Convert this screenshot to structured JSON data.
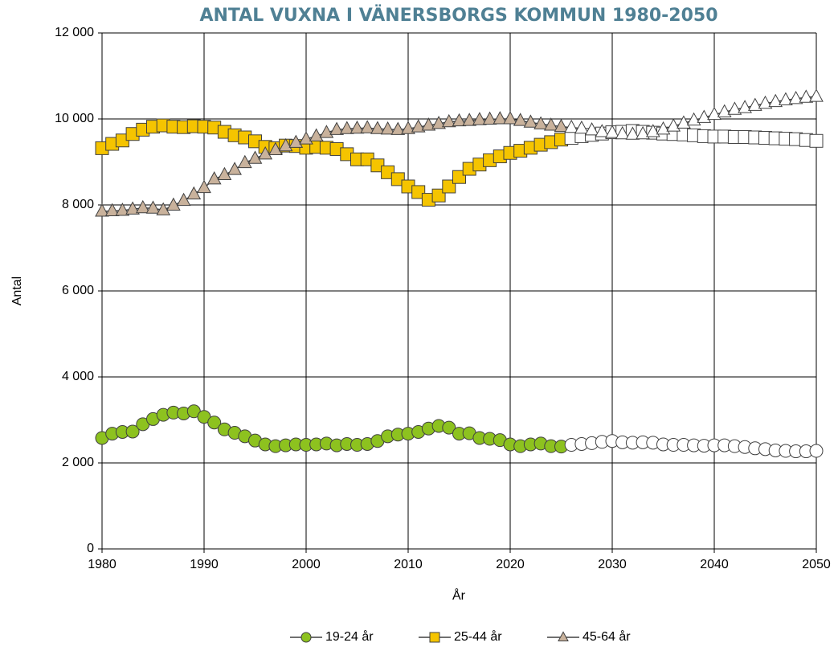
{
  "chart_data": {
    "type": "line",
    "title": "ANTAL VUXNA I VÄNERSBORGS KOMMUN 1980-2050",
    "y_label": "Antal",
    "x_label": "År",
    "x": [
      1980,
      1981,
      1982,
      1983,
      1984,
      1985,
      1986,
      1987,
      1988,
      1989,
      1990,
      1991,
      1992,
      1993,
      1994,
      1995,
      1996,
      1997,
      1998,
      1999,
      2000,
      2001,
      2002,
      2003,
      2004,
      2005,
      2006,
      2007,
      2008,
      2009,
      2010,
      2011,
      2012,
      2013,
      2014,
      2015,
      2016,
      2017,
      2018,
      2019,
      2020,
      2021,
      2022,
      2023,
      2024,
      2025,
      2026,
      2027,
      2028,
      2029,
      2030,
      2031,
      2032,
      2033,
      2034,
      2035,
      2036,
      2037,
      2038,
      2039,
      2040,
      2041,
      2042,
      2043,
      2044,
      2045,
      2046,
      2047,
      2048,
      2049,
      2050
    ],
    "open_markers_from": 2026,
    "line_color": "#404040",
    "series": [
      {
        "name": "19-24 år",
        "color": "#8dc21f",
        "marker": "circle",
        "values": [
          2580,
          2680,
          2720,
          2730,
          2900,
          3020,
          3120,
          3170,
          3150,
          3200,
          3070,
          2940,
          2780,
          2700,
          2620,
          2520,
          2430,
          2390,
          2410,
          2430,
          2420,
          2430,
          2450,
          2410,
          2440,
          2420,
          2440,
          2510,
          2620,
          2660,
          2680,
          2720,
          2800,
          2860,
          2820,
          2680,
          2690,
          2580,
          2560,
          2530,
          2430,
          2390,
          2430,
          2450,
          2390,
          2380,
          2420,
          2440,
          2460,
          2490,
          2510,
          2480,
          2470,
          2480,
          2470,
          2430,
          2420,
          2420,
          2410,
          2400,
          2410,
          2410,
          2390,
          2370,
          2340,
          2320,
          2290,
          2280,
          2270,
          2270,
          2280
        ]
      },
      {
        "name": "25-44 år",
        "color": "#f5c400",
        "marker": "square",
        "values": [
          9320,
          9420,
          9500,
          9650,
          9750,
          9820,
          9850,
          9820,
          9810,
          9830,
          9820,
          9800,
          9700,
          9620,
          9570,
          9480,
          9350,
          9320,
          9380,
          9370,
          9330,
          9350,
          9330,
          9300,
          9180,
          9060,
          9060,
          8920,
          8760,
          8600,
          8430,
          8300,
          8120,
          8220,
          8430,
          8650,
          8840,
          8940,
          9040,
          9130,
          9210,
          9260,
          9330,
          9400,
          9460,
          9520,
          9560,
          9600,
          9630,
          9660,
          9690,
          9700,
          9720,
          9700,
          9680,
          9660,
          9650,
          9640,
          9620,
          9600,
          9590,
          9590,
          9580,
          9580,
          9570,
          9560,
          9550,
          9540,
          9530,
          9510,
          9490
        ]
      },
      {
        "name": "45-64 år",
        "color": "#c9b29c",
        "marker": "triangle",
        "values": [
          7850,
          7860,
          7870,
          7900,
          7930,
          7920,
          7880,
          7990,
          8100,
          8250,
          8400,
          8600,
          8700,
          8820,
          8980,
          9080,
          9180,
          9280,
          9370,
          9450,
          9530,
          9600,
          9680,
          9750,
          9770,
          9780,
          9790,
          9770,
          9760,
          9750,
          9770,
          9810,
          9850,
          9890,
          9930,
          9950,
          9960,
          9980,
          9990,
          10000,
          10000,
          9960,
          9920,
          9880,
          9850,
          9820,
          9800,
          9780,
          9740,
          9700,
          9680,
          9650,
          9640,
          9650,
          9700,
          9760,
          9830,
          9900,
          9970,
          10030,
          10100,
          10160,
          10220,
          10260,
          10310,
          10360,
          10400,
          10440,
          10470,
          10500,
          10520
        ]
      }
    ],
    "xlim": [
      1980,
      2050
    ],
    "xticks": [
      1980,
      1990,
      2000,
      2010,
      2020,
      2030,
      2040,
      2050
    ],
    "ylim": [
      0,
      12000
    ],
    "yticks": [
      0,
      {
        "value": 2000,
        "label": "2 000"
      },
      {
        "value": 4000,
        "label": "4 000"
      },
      {
        "value": 6000,
        "label": "6 000"
      },
      {
        "value": 8000,
        "label": "8 000"
      },
      {
        "value": 10000,
        "label": "10 000"
      },
      {
        "value": 12000,
        "label": "12 000"
      }
    ],
    "grid": true,
    "legend": "bottom"
  }
}
